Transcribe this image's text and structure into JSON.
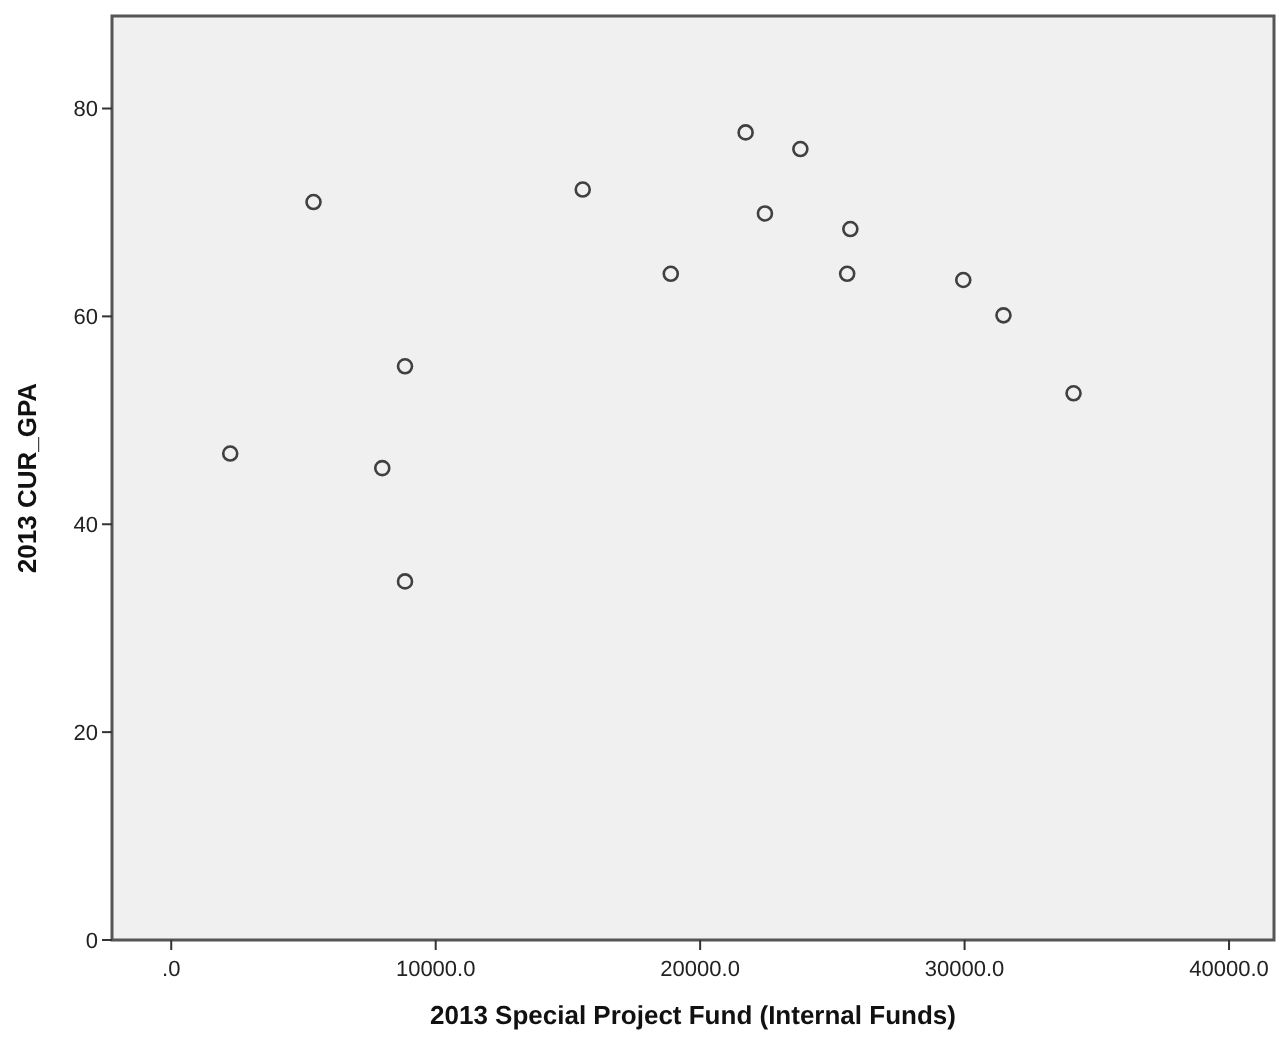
{
  "chart_data": {
    "type": "scatter",
    "xlabel": "2013 Special Project Fund (Internal Funds)",
    "ylabel": "2013 CUR_GPA",
    "x": [
      2230,
      5380,
      8840,
      7980,
      8840,
      15560,
      18890,
      21720,
      23790,
      22450,
      25680,
      25560,
      29950,
      31470,
      34120
    ],
    "series": [
      {
        "color": "#404040",
        "values": [
          46.8,
          71.0,
          55.2,
          45.4,
          34.5,
          72.2,
          64.1,
          77.7,
          76.1,
          69.9,
          68.4,
          64.1,
          63.5,
          60.1,
          52.6
        ]
      }
    ],
    "xlim": [
      -2240,
      41700
    ],
    "ylim": [
      0,
      88.9
    ],
    "xticks": [
      {
        "value": 0,
        "label": ".0"
      },
      {
        "value": 10000,
        "label": "10000.0"
      },
      {
        "value": 20000,
        "label": "20000.0"
      },
      {
        "value": 30000,
        "label": "30000.0"
      },
      {
        "value": 40000,
        "label": "40000.0"
      }
    ],
    "yticks": [
      0,
      20,
      40,
      60,
      80
    ],
    "marker": "circle",
    "grid": false
  }
}
